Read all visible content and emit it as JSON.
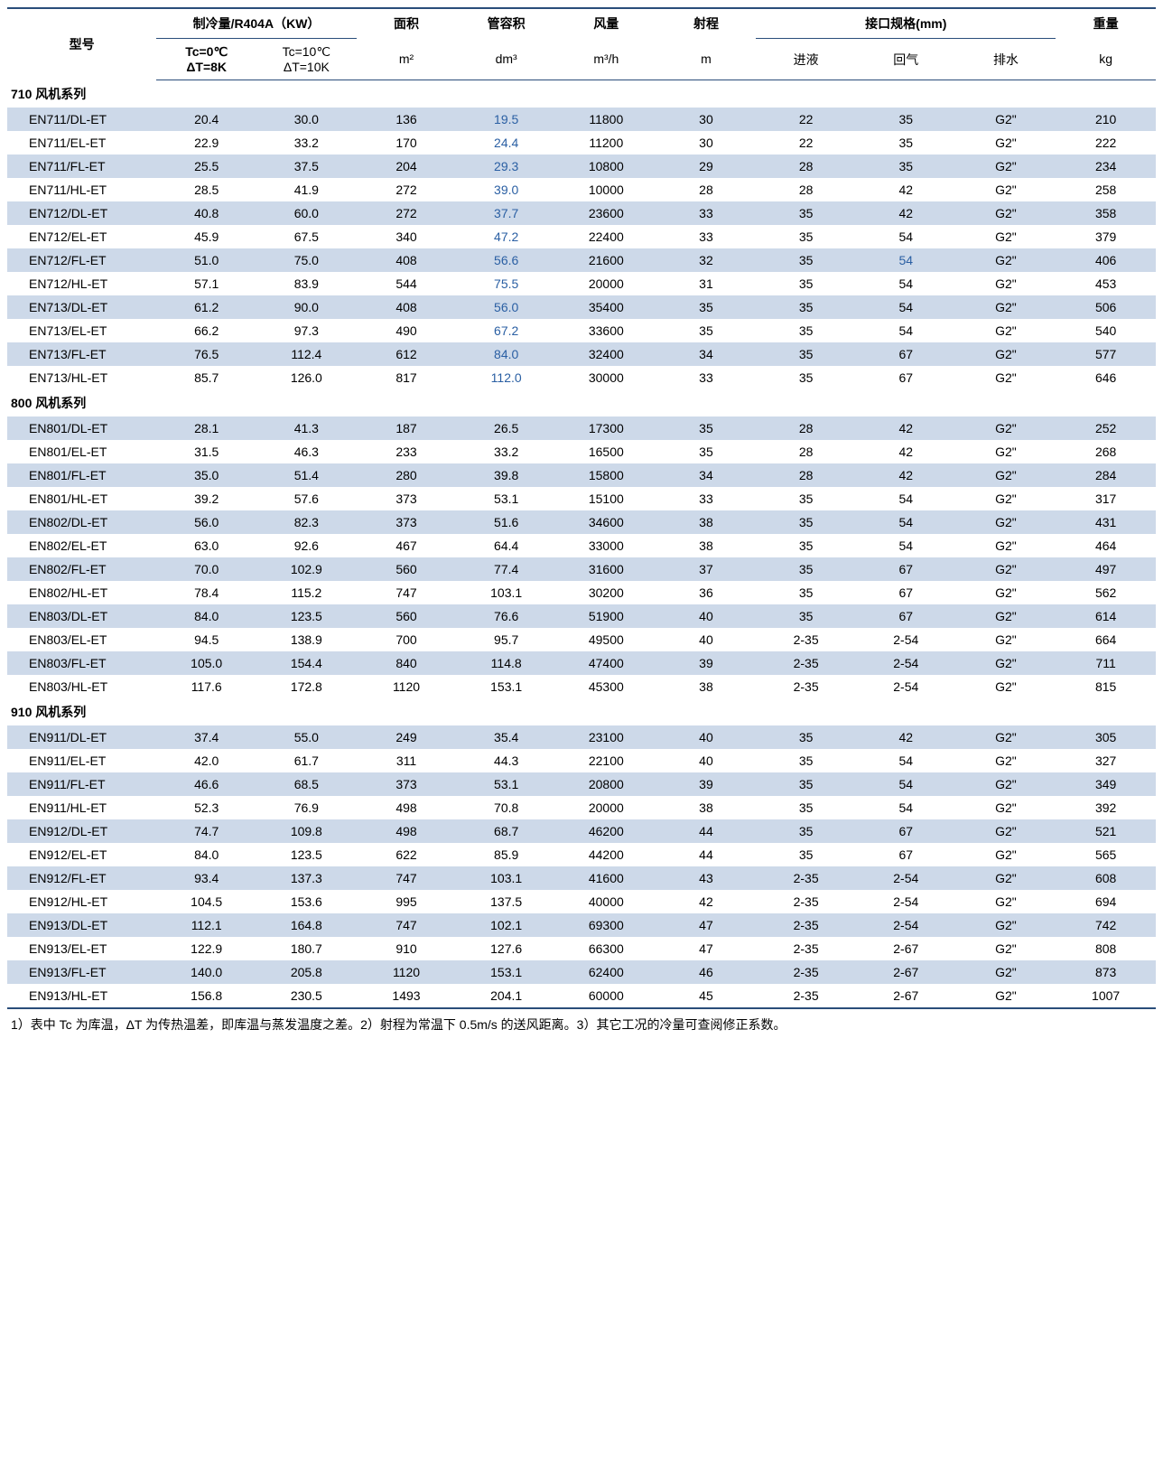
{
  "colors": {
    "stripe": "#cdd9e9",
    "border": "#2a4d7a",
    "blue_text": "#2a5fa3"
  },
  "headers": {
    "model": "型号",
    "cooling": "制冷量/R404A（KW）",
    "area": "面积",
    "tube_vol": "管容积",
    "airflow": "风量",
    "throw": "射程",
    "conn": "接口规格(mm)",
    "weight": "重量",
    "tc0": "Tc=0℃",
    "dt8": "ΔT=8K",
    "tc10": "Tc=10℃",
    "dt10": "ΔT=10K",
    "m2": "m²",
    "dm3": "dm³",
    "m3h": "m³/h",
    "m": "m",
    "liquid": "进液",
    "suction": "回气",
    "drain": "排水",
    "kg": "kg"
  },
  "sections": [
    {
      "title": "710 风机系列",
      "blue_cols": [
        "tube_vol"
      ],
      "rows": [
        {
          "model": "EN711/DL-ET",
          "c0": "20.4",
          "c10": "30.0",
          "area": "136",
          "tv": "19.5",
          "af": "11800",
          "th": "30",
          "liq": "22",
          "suc": "35",
          "dr": "G2\"",
          "wt": "210"
        },
        {
          "model": "EN711/EL-ET",
          "c0": "22.9",
          "c10": "33.2",
          "area": "170",
          "tv": "24.4",
          "af": "11200",
          "th": "30",
          "liq": "22",
          "suc": "35",
          "dr": "G2\"",
          "wt": "222"
        },
        {
          "model": "EN711/FL-ET",
          "c0": "25.5",
          "c10": "37.5",
          "area": "204",
          "tv": "29.3",
          "af": "10800",
          "th": "29",
          "liq": "28",
          "suc": "35",
          "dr": "G2\"",
          "wt": "234"
        },
        {
          "model": "EN711/HL-ET",
          "c0": "28.5",
          "c10": "41.9",
          "area": "272",
          "tv": "39.0",
          "af": "10000",
          "th": "28",
          "liq": "28",
          "suc": "42",
          "dr": "G2\"",
          "wt": "258"
        },
        {
          "model": "EN712/DL-ET",
          "c0": "40.8",
          "c10": "60.0",
          "area": "272",
          "tv": "37.7",
          "af": "23600",
          "th": "33",
          "liq": "35",
          "suc": "42",
          "dr": "G2\"",
          "wt": "358"
        },
        {
          "model": "EN712/EL-ET",
          "c0": "45.9",
          "c10": "67.5",
          "area": "340",
          "tv": "47.2",
          "af": "22400",
          "th": "33",
          "liq": "35",
          "suc": "54",
          "dr": "G2\"",
          "wt": "379"
        },
        {
          "model": "EN712/FL-ET",
          "c0": "51.0",
          "c10": "75.0",
          "area": "408",
          "tv": "56.6",
          "af": "21600",
          "th": "32",
          "liq": "35",
          "suc": "54",
          "suc_blue": true,
          "dr": "G2\"",
          "wt": "406"
        },
        {
          "model": "EN712/HL-ET",
          "c0": "57.1",
          "c10": "83.9",
          "area": "544",
          "tv": "75.5",
          "af": "20000",
          "th": "31",
          "liq": "35",
          "suc": "54",
          "dr": "G2\"",
          "wt": "453"
        },
        {
          "model": "EN713/DL-ET",
          "c0": "61.2",
          "c10": "90.0",
          "area": "408",
          "tv": "56.0",
          "af": "35400",
          "th": "35",
          "liq": "35",
          "suc": "54",
          "dr": "G2\"",
          "wt": "506"
        },
        {
          "model": "EN713/EL-ET",
          "c0": "66.2",
          "c10": "97.3",
          "area": "490",
          "tv": "67.2",
          "af": "33600",
          "th": "35",
          "liq": "35",
          "suc": "54",
          "dr": "G2\"",
          "wt": "540"
        },
        {
          "model": "EN713/FL-ET",
          "c0": "76.5",
          "c10": "112.4",
          "area": "612",
          "tv": "84.0",
          "af": "32400",
          "th": "34",
          "liq": "35",
          "suc": "67",
          "dr": "G2\"",
          "wt": "577"
        },
        {
          "model": "EN713/HL-ET",
          "c0": "85.7",
          "c10": "126.0",
          "area": "817",
          "tv": "112.0",
          "af": "30000",
          "th": "33",
          "liq": "35",
          "suc": "67",
          "dr": "G2\"",
          "wt": "646"
        }
      ]
    },
    {
      "title": "800 风机系列",
      "blue_cols": [],
      "rows": [
        {
          "model": "EN801/DL-ET",
          "c0": "28.1",
          "c10": "41.3",
          "area": "187",
          "tv": "26.5",
          "af": "17300",
          "th": "35",
          "liq": "28",
          "suc": "42",
          "dr": "G2\"",
          "wt": "252"
        },
        {
          "model": "EN801/EL-ET",
          "c0": "31.5",
          "c10": "46.3",
          "area": "233",
          "tv": "33.2",
          "af": "16500",
          "th": "35",
          "liq": "28",
          "suc": "42",
          "dr": "G2\"",
          "wt": "268"
        },
        {
          "model": "EN801/FL-ET",
          "c0": "35.0",
          "c10": "51.4",
          "area": "280",
          "tv": "39.8",
          "af": "15800",
          "th": "34",
          "liq": "28",
          "suc": "42",
          "dr": "G2\"",
          "wt": "284"
        },
        {
          "model": "EN801/HL-ET",
          "c0": "39.2",
          "c10": "57.6",
          "area": "373",
          "tv": "53.1",
          "af": "15100",
          "th": "33",
          "liq": "35",
          "suc": "54",
          "dr": "G2\"",
          "wt": "317"
        },
        {
          "model": "EN802/DL-ET",
          "c0": "56.0",
          "c10": "82.3",
          "area": "373",
          "tv": "51.6",
          "af": "34600",
          "th": "38",
          "liq": "35",
          "suc": "54",
          "dr": "G2\"",
          "wt": "431"
        },
        {
          "model": "EN802/EL-ET",
          "c0": "63.0",
          "c10": "92.6",
          "area": "467",
          "tv": "64.4",
          "af": "33000",
          "th": "38",
          "liq": "35",
          "suc": "54",
          "dr": "G2\"",
          "wt": "464"
        },
        {
          "model": "EN802/FL-ET",
          "c0": "70.0",
          "c10": "102.9",
          "area": "560",
          "tv": "77.4",
          "af": "31600",
          "th": "37",
          "liq": "35",
          "suc": "67",
          "dr": "G2\"",
          "wt": "497"
        },
        {
          "model": "EN802/HL-ET",
          "c0": "78.4",
          "c10": "115.2",
          "area": "747",
          "tv": "103.1",
          "af": "30200",
          "th": "36",
          "liq": "35",
          "suc": "67",
          "dr": "G2\"",
          "wt": "562"
        },
        {
          "model": "EN803/DL-ET",
          "c0": "84.0",
          "c10": "123.5",
          "area": "560",
          "tv": "76.6",
          "af": "51900",
          "th": "40",
          "liq": "35",
          "suc": "67",
          "dr": "G2\"",
          "wt": "614"
        },
        {
          "model": "EN803/EL-ET",
          "c0": "94.5",
          "c10": "138.9",
          "area": "700",
          "tv": "95.7",
          "af": "49500",
          "th": "40",
          "liq": "2-35",
          "suc": "2-54",
          "dr": "G2\"",
          "wt": "664"
        },
        {
          "model": "EN803/FL-ET",
          "c0": "105.0",
          "c10": "154.4",
          "area": "840",
          "tv": "114.8",
          "af": "47400",
          "th": "39",
          "liq": "2-35",
          "suc": "2-54",
          "dr": "G2\"",
          "wt": "711"
        },
        {
          "model": "EN803/HL-ET",
          "c0": "117.6",
          "c10": "172.8",
          "area": "1120",
          "tv": "153.1",
          "af": "45300",
          "th": "38",
          "liq": "2-35",
          "suc": "2-54",
          "dr": "G2\"",
          "wt": "815"
        }
      ]
    },
    {
      "title": "910 风机系列",
      "blue_cols": [],
      "rows": [
        {
          "model": "EN911/DL-ET",
          "c0": "37.4",
          "c10": "55.0",
          "area": "249",
          "tv": "35.4",
          "af": "23100",
          "th": "40",
          "liq": "35",
          "suc": "42",
          "dr": "G2\"",
          "wt": "305"
        },
        {
          "model": "EN911/EL-ET",
          "c0": "42.0",
          "c10": "61.7",
          "area": "311",
          "tv": "44.3",
          "af": "22100",
          "th": "40",
          "liq": "35",
          "suc": "54",
          "dr": "G2\"",
          "wt": "327"
        },
        {
          "model": "EN911/FL-ET",
          "c0": "46.6",
          "c10": "68.5",
          "area": "373",
          "tv": "53.1",
          "af": "20800",
          "th": "39",
          "liq": "35",
          "suc": "54",
          "dr": "G2\"",
          "wt": "349"
        },
        {
          "model": "EN911/HL-ET",
          "c0": "52.3",
          "c10": "76.9",
          "area": "498",
          "tv": "70.8",
          "af": "20000",
          "th": "38",
          "liq": "35",
          "suc": "54",
          "dr": "G2\"",
          "wt": "392"
        },
        {
          "model": "EN912/DL-ET",
          "c0": "74.7",
          "c10": "109.8",
          "area": "498",
          "tv": "68.7",
          "af": "46200",
          "th": "44",
          "liq": "35",
          "suc": "67",
          "dr": "G2\"",
          "wt": "521"
        },
        {
          "model": "EN912/EL-ET",
          "c0": "84.0",
          "c10": "123.5",
          "area": "622",
          "tv": "85.9",
          "af": "44200",
          "th": "44",
          "liq": "35",
          "suc": "67",
          "dr": "G2\"",
          "wt": "565"
        },
        {
          "model": "EN912/FL-ET",
          "c0": "93.4",
          "c10": "137.3",
          "area": "747",
          "tv": "103.1",
          "af": "41600",
          "th": "43",
          "liq": "2-35",
          "suc": "2-54",
          "dr": "G2\"",
          "wt": "608"
        },
        {
          "model": "EN912/HL-ET",
          "c0": "104.5",
          "c10": "153.6",
          "area": "995",
          "tv": "137.5",
          "af": "40000",
          "th": "42",
          "liq": "2-35",
          "suc": "2-54",
          "dr": "G2\"",
          "wt": "694"
        },
        {
          "model": "EN913/DL-ET",
          "c0": "112.1",
          "c10": "164.8",
          "area": "747",
          "tv": "102.1",
          "af": "69300",
          "th": "47",
          "liq": "2-35",
          "suc": "2-54",
          "dr": "G2\"",
          "wt": "742"
        },
        {
          "model": "EN913/EL-ET",
          "c0": "122.9",
          "c10": "180.7",
          "area": "910",
          "tv": "127.6",
          "af": "66300",
          "th": "47",
          "liq": "2-35",
          "suc": "2-67",
          "dr": "G2\"",
          "wt": "808"
        },
        {
          "model": "EN913/FL-ET",
          "c0": "140.0",
          "c10": "205.8",
          "area": "1120",
          "tv": "153.1",
          "af": "62400",
          "th": "46",
          "liq": "2-35",
          "suc": "2-67",
          "dr": "G2\"",
          "wt": "873"
        },
        {
          "model": "EN913/HL-ET",
          "c0": "156.8",
          "c10": "230.5",
          "area": "1493",
          "tv": "204.1",
          "af": "60000",
          "th": "45",
          "liq": "2-35",
          "suc": "2-67",
          "dr": "G2\"",
          "wt": "1007"
        }
      ]
    }
  ],
  "footnote": "1）表中 Tc 为库温，ΔT 为传热温差，即库温与蒸发温度之差。2）射程为常温下 0.5m/s 的送风距离。3）其它工况的冷量可查阅修正系数。"
}
